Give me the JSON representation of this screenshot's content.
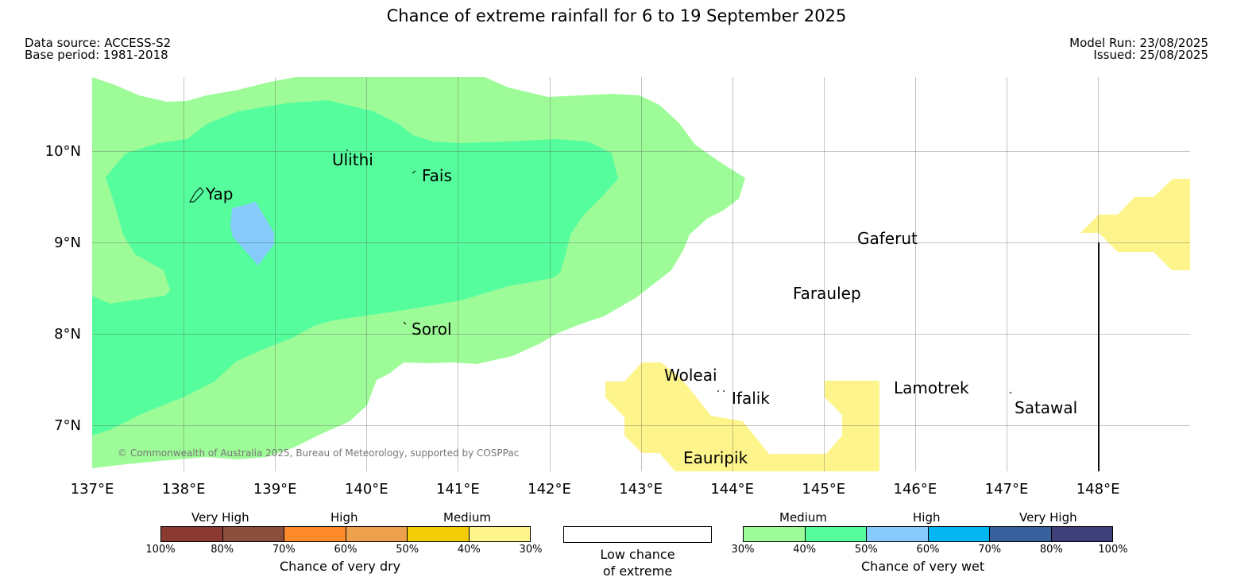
{
  "header": {
    "title": "Chance of extreme rainfall for 6 to 19 September 2025",
    "data_source": "Data source: ACCESS-S2",
    "base_period": "Base period: 1981-2018",
    "model_run": "Model Run: 23/08/2025",
    "issued": "Issued: 25/08/2025"
  },
  "map": {
    "copyright": "© Commonwealth of Australia 2025, Bureau of Meteorology, supported by COSPPac",
    "lat_ticks": [
      "10°N",
      "9°N",
      "8°N",
      "7°N"
    ],
    "lon_ticks": [
      "137°E",
      "138°E",
      "139°E",
      "140°E",
      "141°E",
      "142°E",
      "143°E",
      "144°E",
      "145°E",
      "146°E",
      "147°E",
      "148°E"
    ],
    "places": [
      {
        "name": "Yap"
      },
      {
        "name": "Ulithi"
      },
      {
        "name": "Fais"
      },
      {
        "name": "Sorol"
      },
      {
        "name": "Gaferut"
      },
      {
        "name": "Faraulep"
      },
      {
        "name": "Woleai"
      },
      {
        "name": "Ifalik"
      },
      {
        "name": "Lamotrek"
      },
      {
        "name": "Satawal"
      },
      {
        "name": "Eauripik"
      }
    ],
    "colors": {
      "wet_medium_30": "#9efc98",
      "wet_medium_40": "#56fd9d",
      "wet_high_50": "#86cbfb",
      "dry_medium_30": "#fdf58c"
    }
  },
  "legend": {
    "dry": {
      "groups": [
        "Very High",
        "High",
        "Medium"
      ],
      "ticks": [
        "100%",
        "80%",
        "70%",
        "60%",
        "50%",
        "40%",
        "30%"
      ],
      "colors": [
        "#8b3a32",
        "#8c4f3e",
        "#fd8a2b",
        "#eda14d",
        "#f2cc05",
        "#fdf58c"
      ],
      "title": "Chance of very dry"
    },
    "neutral": {
      "line1": "Low chance",
      "line2": "of extreme",
      "color": "#ffffff"
    },
    "wet": {
      "groups": [
        "Medium",
        "High",
        "Very High"
      ],
      "ticks": [
        "30%",
        "40%",
        "50%",
        "60%",
        "70%",
        "80%",
        "100%"
      ],
      "colors": [
        "#9efc98",
        "#56fd9d",
        "#86cbfb",
        "#03b5f0",
        "#37609c",
        "#3e3f79"
      ],
      "title": "Chance of very wet"
    }
  }
}
